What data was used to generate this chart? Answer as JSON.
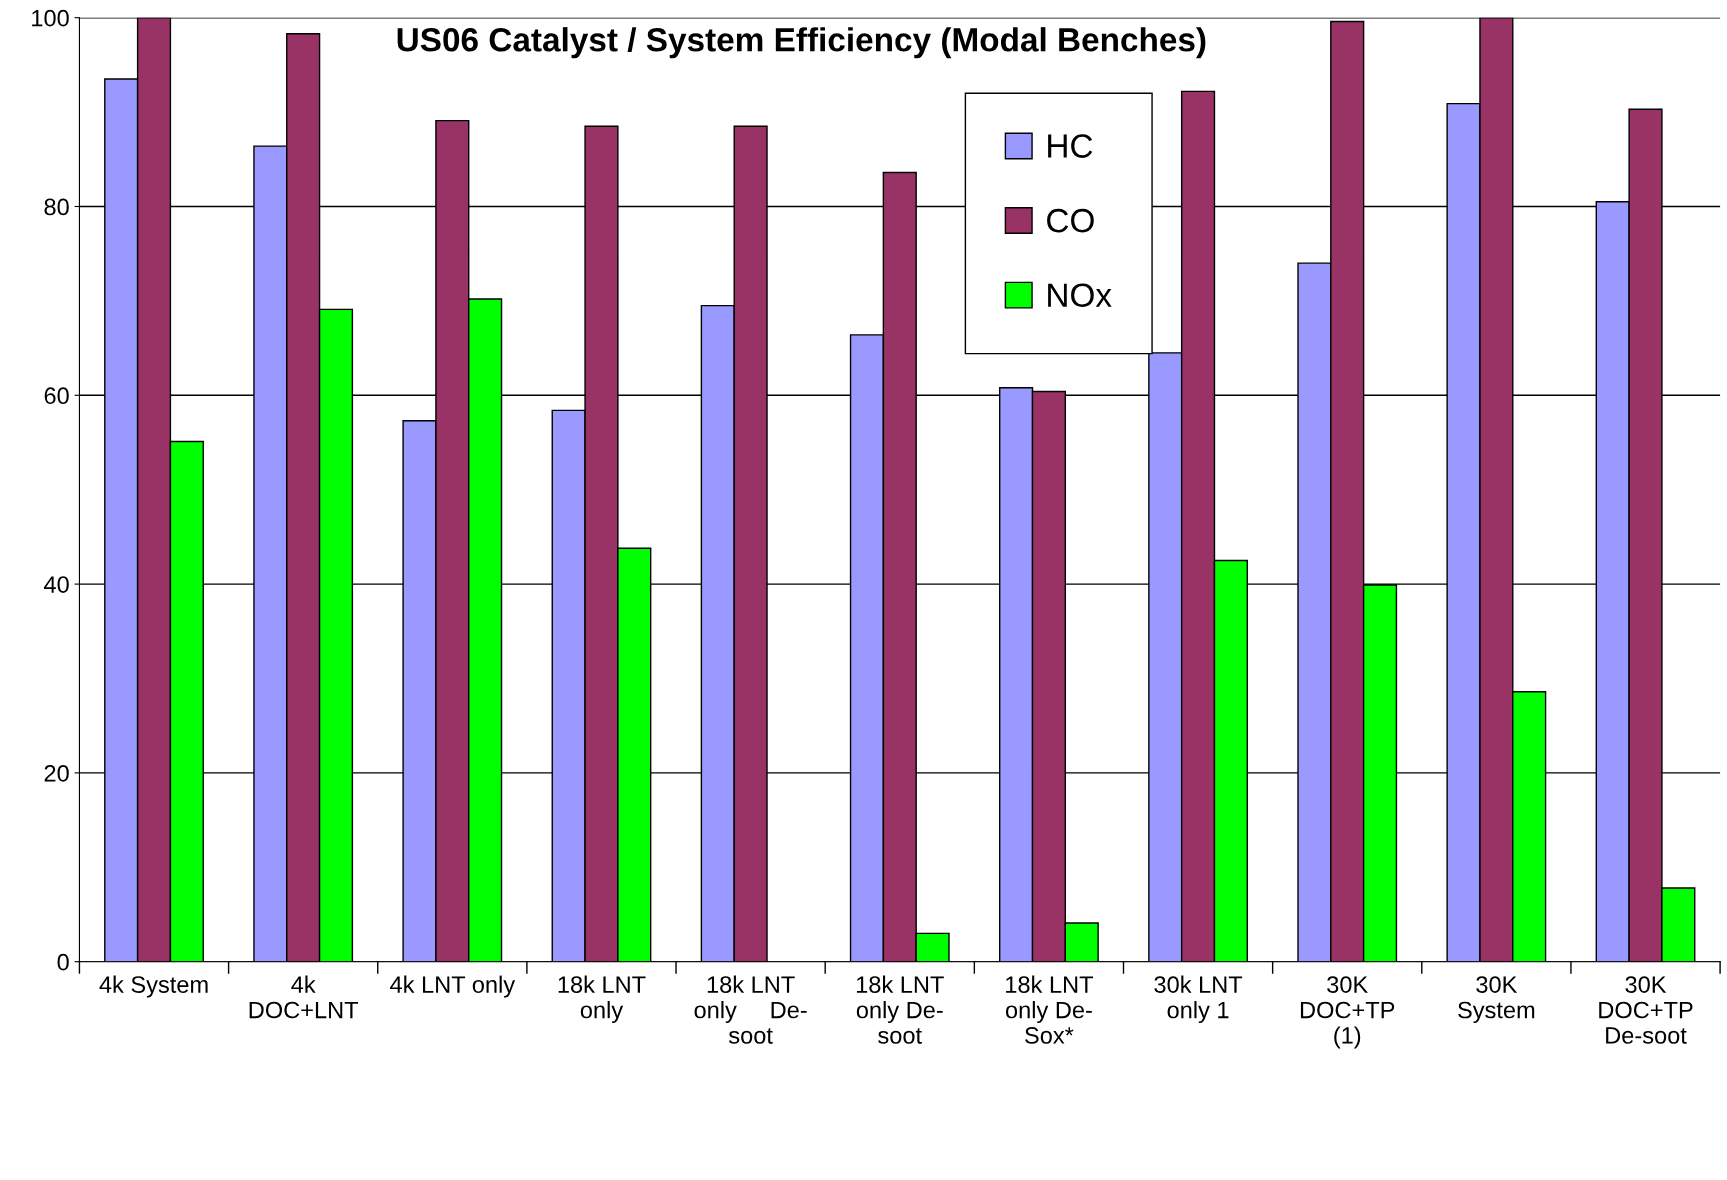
{
  "chart_data": {
    "type": "bar",
    "title": "US06 Catalyst / System Efficiency (Modal Benches)",
    "categories": [
      "4k System",
      "4k\nDOC+LNT",
      "4k LNT only",
      "18k LNT\nonly",
      "18k LNT\nonly     De-\nsoot",
      "18k LNT\nonly De-\nsoot",
      "18k LNT\nonly De-\nSox*",
      "30k LNT\nonly 1",
      "30K\nDOC+TP\n(1)",
      "30K\nSystem",
      "30K\nDOC+TP\nDe-soot"
    ],
    "series": [
      {
        "name": "HC",
        "color": "#9999ff",
        "values": [
          93.5,
          86.4,
          57.3,
          58.4,
          69.5,
          66.4,
          60.8,
          64.5,
          74.0,
          90.9,
          80.5
        ]
      },
      {
        "name": "CO",
        "color": "#993366",
        "values": [
          100,
          98.3,
          89.1,
          88.5,
          88.5,
          83.6,
          60.4,
          92.2,
          99.6,
          100,
          90.3
        ]
      },
      {
        "name": "NOx",
        "color": "#00ff00",
        "values": [
          55.1,
          69.1,
          70.2,
          43.8,
          null,
          3.0,
          4.1,
          42.5,
          39.9,
          28.6,
          7.8
        ]
      }
    ],
    "ylim": [
      0,
      100
    ],
    "yticks": [
      0,
      20,
      40,
      60,
      80,
      100
    ],
    "grid": "y",
    "legend": "top"
  }
}
